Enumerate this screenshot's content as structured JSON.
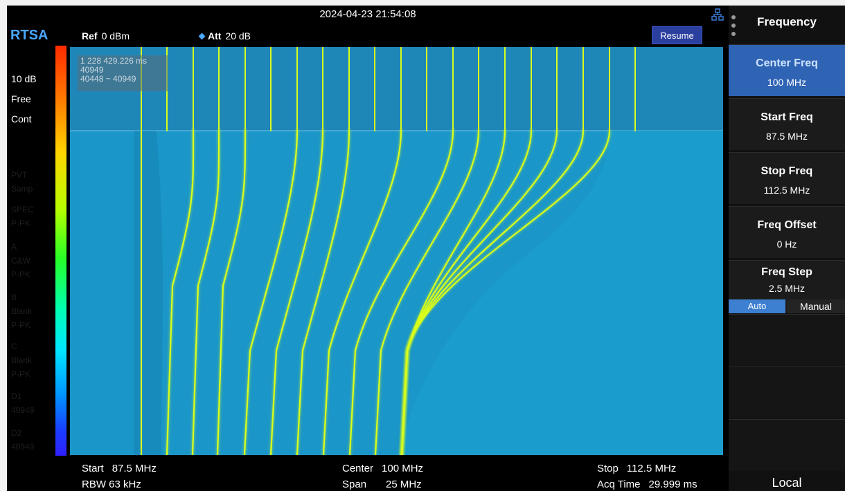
{
  "topbar": {
    "datetime": "2024-04-23 21:54:08",
    "network_icon": "network-icon",
    "mode": "RTSA",
    "ref_label": "Ref",
    "ref_value": "0 dBm",
    "att_label": "Att",
    "att_value": "20 dB",
    "resume_label": "Resume"
  },
  "left_panel": {
    "scale": "10 dB",
    "trigger": "Free",
    "sweep": "Cont",
    "dim_lines": [
      "PVT",
      "Samp",
      "SPEC",
      "P-PK",
      "A",
      "C&W",
      "P-PK",
      "B",
      "Blank",
      "P-PK",
      "C",
      "Blank",
      "P-PK",
      "D1",
      "40949",
      "D2",
      "40949"
    ]
  },
  "marker": {
    "time": "1 228 429.226 ms",
    "frame": "40949",
    "range": "40448 ~ 40949"
  },
  "bottom": {
    "start_label": "Start",
    "start_value": "87.5 MHz",
    "rbw_label": "RBW",
    "rbw_value": "63 kHz",
    "center_label": "Center",
    "center_value": "100 MHz",
    "span_label": "Span",
    "span_value": "25 MHz",
    "stop_label": "Stop",
    "stop_value": "112.5 MHz",
    "acq_label": "Acq Time",
    "acq_value": "29.999 ms"
  },
  "softkeys": {
    "title": "Frequency",
    "center": {
      "label": "Center Freq",
      "value": "100 MHz"
    },
    "start": {
      "label": "Start Freq",
      "value": "87.5 MHz"
    },
    "stop": {
      "label": "Stop Freq",
      "value": "112.5 MHz"
    },
    "offset": {
      "label": "Freq Offset",
      "value": "0 Hz"
    },
    "step": {
      "label": "Freq Step",
      "value": "2.5 MHz",
      "auto": "Auto",
      "manual": "Manual",
      "selected": "Auto"
    },
    "local": "Local"
  },
  "colors": {
    "waterfall_bg": "#1a96c8",
    "signal": "#d9ff1a",
    "accent": "#4aa8ff",
    "active_softkey": "#2f63b4"
  }
}
